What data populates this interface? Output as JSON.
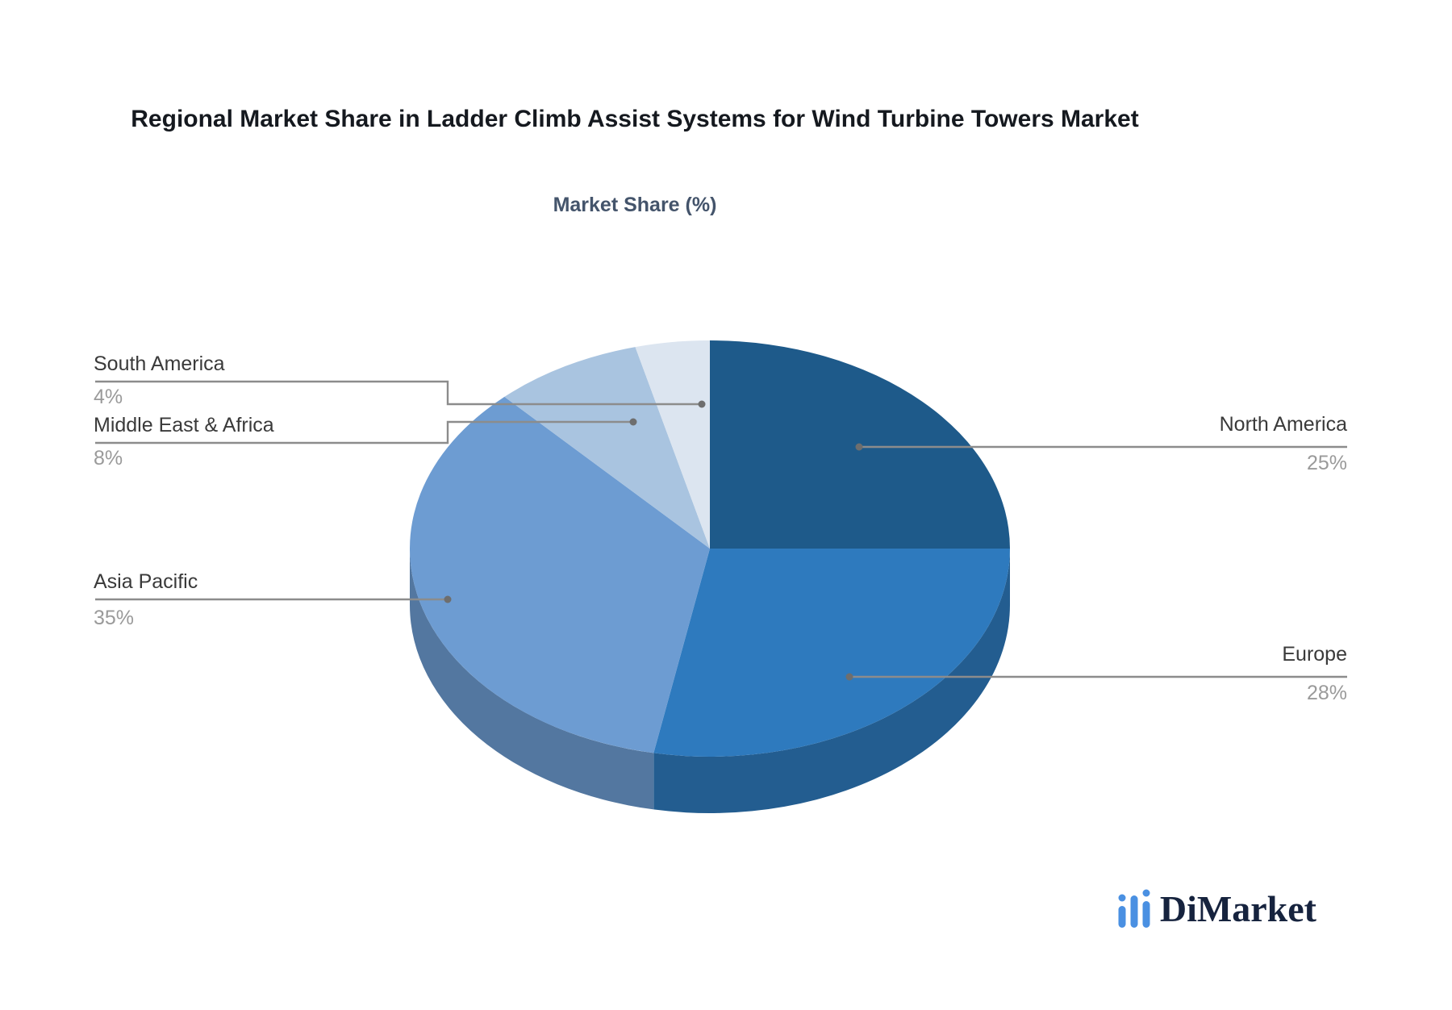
{
  "page": {
    "background": "#ffffff"
  },
  "chart_data": {
    "type": "pie",
    "style": "3d",
    "start_angle": "top",
    "direction": "clockwise",
    "title": "Regional Market Share in Ladder Climb Assist Systems for Wind Turbine Towers Market",
    "subtitle": "Market Share (%)",
    "unit": "%",
    "slices": [
      {
        "label": "North America",
        "value": 25,
        "pct_label": "25%",
        "color": "#1e5a8a",
        "label_side": "right"
      },
      {
        "label": "Europe",
        "value": 28,
        "pct_label": "28%",
        "color": "#2e7abe",
        "label_side": "right"
      },
      {
        "label": "Asia Pacific",
        "value": 35,
        "pct_label": "35%",
        "color": "#6d9cd2",
        "label_side": "left"
      },
      {
        "label": "Middle East & Africa",
        "value": 8,
        "pct_label": "8%",
        "color": "#a9c4e0",
        "label_side": "left"
      },
      {
        "label": "South America",
        "value": 4,
        "pct_label": "4%",
        "color": "#dce5f0",
        "label_side": "left"
      }
    ],
    "legend": "none",
    "leader_line_color": "#8c8c8c",
    "label_color": "#3a3a3a",
    "pct_color": "#9a9a9a"
  },
  "branding": {
    "logo_text": "DiMarket",
    "logo_icon": "bar-chart-icon",
    "logo_icon_color": "#4a90e2"
  }
}
